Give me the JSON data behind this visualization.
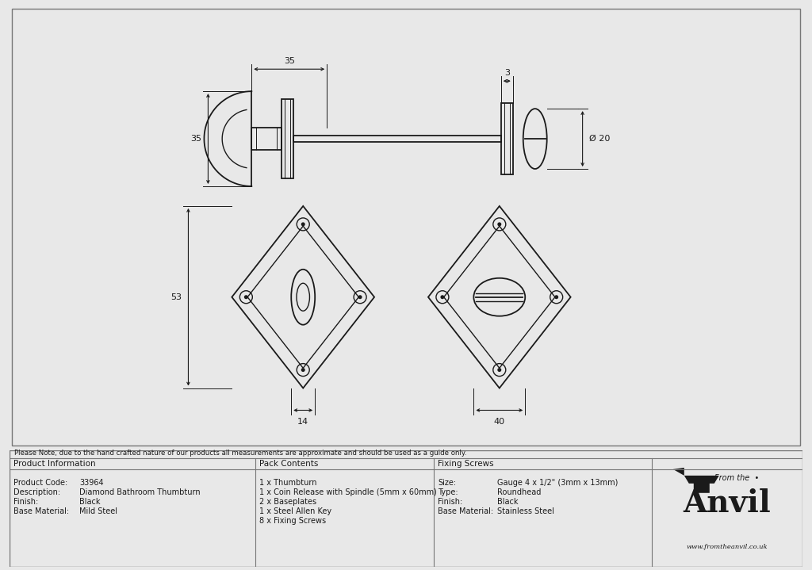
{
  "bg_color": "#e8e8e8",
  "drawing_bg": "#ffffff",
  "line_color": "#1a1a1a",
  "text_color": "#1a1a1a",
  "note_text": "Please Note, due to the hand crafted nature of our products all measurements are approximate and should be used as a guide only.",
  "product_info": {
    "header": "Product Information",
    "rows": [
      [
        "Product Code:",
        "33964"
      ],
      [
        "Description:",
        "Diamond Bathroom Thumbturn"
      ],
      [
        "Finish:",
        "Black"
      ],
      [
        "Base Material:",
        "Mild Steel"
      ]
    ]
  },
  "pack_contents": {
    "header": "Pack Contents",
    "items": [
      "1 x Thumbturn",
      "1 x Coin Release with Spindle (5mm x 60mm)",
      "2 x Baseplates",
      "1 x Steel Allen Key",
      "8 x Fixing Screws"
    ]
  },
  "fixing_screws": {
    "header": "Fixing Screws",
    "rows": [
      [
        "Size:",
        "Gauge 4 x 1/2\" (3mm x 13mm)"
      ],
      [
        "Type:",
        "Roundhead"
      ],
      [
        "Finish:",
        "Black"
      ],
      [
        "Base Material:",
        "Stainless Steel"
      ]
    ]
  },
  "dim_35_top_label": "35",
  "dim_3_top_label": "3",
  "dim_35_left_label": "35",
  "dim_20_right_label": "Ø 20",
  "dim_53_left_label": "53",
  "dim_14_bottom_label": "14",
  "dim_40_bottom_label": "40"
}
